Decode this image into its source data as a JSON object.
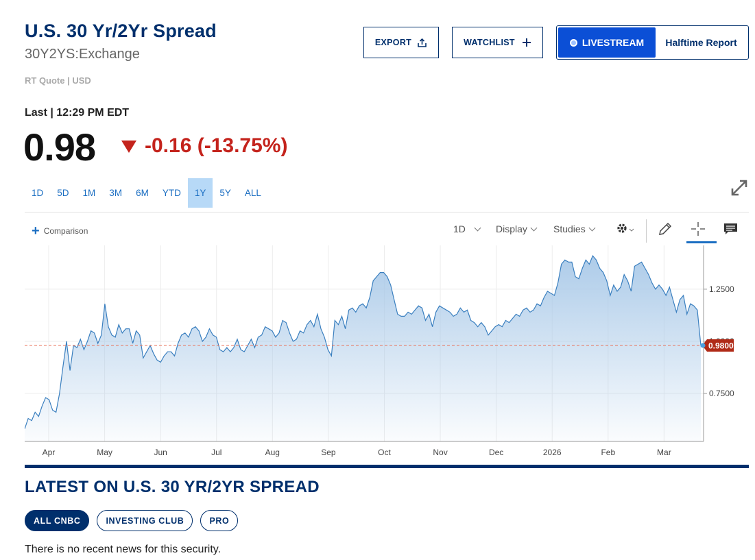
{
  "header": {
    "title": "U.S. 30 Yr/2Yr Spread",
    "symbol": "30Y2YS:Exchange",
    "quote_meta": "RT Quote | USD"
  },
  "actions": {
    "export_label": "EXPORT",
    "watchlist_label": "WATCHLIST",
    "livestream_label": "LIVESTREAM",
    "livestream_show": "Halftime Report"
  },
  "quote": {
    "last_label": "Last | 12:29 PM EDT",
    "price": "0.98",
    "change": "-0.16 (-13.75%)",
    "direction": "down",
    "change_color": "#c4231c"
  },
  "ranges": [
    {
      "label": "1D",
      "active": false
    },
    {
      "label": "5D",
      "active": false
    },
    {
      "label": "1M",
      "active": false
    },
    {
      "label": "3M",
      "active": false
    },
    {
      "label": "6M",
      "active": false
    },
    {
      "label": "YTD",
      "active": false
    },
    {
      "label": "1Y",
      "active": true
    },
    {
      "label": "5Y",
      "active": false
    },
    {
      "label": "ALL",
      "active": false
    }
  ],
  "toolbar": {
    "comparison_label": "Comparison",
    "interval_label": "1D",
    "display_label": "Display",
    "studies_label": "Studies",
    "icons": [
      "gear-icon",
      "pencil-icon",
      "crosshair-icon",
      "comment-icon"
    ]
  },
  "chart_data": {
    "type": "area",
    "x_ticks": [
      "Apr",
      "May",
      "Jun",
      "Jul",
      "Aug",
      "Sep",
      "Oct",
      "Nov",
      "Dec",
      "2026",
      "Feb",
      "Mar"
    ],
    "y_ticks": [
      "1.2500",
      "1.0000",
      "0.7500"
    ],
    "ylim": [
      0.52,
      1.46
    ],
    "current_label": "0.9800",
    "current_value": 0.98,
    "line_color": "#3a7fbf",
    "fill_color": "#a9c9e8",
    "marker_color": "#b02a17",
    "reference_line_color": "#e8735a",
    "series": [
      {
        "values": [
          0.58,
          0.63,
          0.62,
          0.66,
          0.64,
          0.69,
          0.73,
          0.72,
          0.67,
          0.66,
          0.75,
          0.88,
          1.0,
          0.86,
          0.98,
          0.97,
          1.01,
          0.96,
          1.0,
          1.05,
          1.04,
          0.99,
          1.03,
          1.18,
          1.07,
          1.03,
          1.02,
          1.08,
          1.04,
          1.06,
          1.06,
          0.99,
          1.05,
          1.03,
          0.92,
          0.95,
          0.98,
          0.94,
          0.91,
          0.9,
          0.93,
          0.95,
          0.95,
          0.93,
          0.99,
          1.03,
          1.04,
          1.02,
          1.06,
          1.07,
          1.05,
          1.0,
          1.02,
          1.06,
          1.03,
          1.02,
          0.96,
          0.95,
          0.97,
          0.95,
          0.97,
          1.01,
          0.96,
          0.95,
          0.98,
          1.01,
          0.97,
          1.02,
          1.03,
          1.07,
          1.06,
          1.05,
          1.02,
          1.04,
          1.1,
          1.09,
          1.04,
          1.0,
          1.01,
          1.05,
          1.04,
          1.08,
          1.1,
          1.07,
          1.13,
          1.06,
          1.02,
          0.96,
          0.93,
          1.1,
          1.08,
          1.12,
          1.06,
          1.15,
          1.16,
          1.14,
          1.17,
          1.18,
          1.16,
          1.21,
          1.29,
          1.31,
          1.33,
          1.33,
          1.31,
          1.27,
          1.2,
          1.13,
          1.12,
          1.12,
          1.14,
          1.13,
          1.15,
          1.17,
          1.16,
          1.1,
          1.13,
          1.07,
          1.14,
          1.17,
          1.16,
          1.15,
          1.14,
          1.12,
          1.13,
          1.16,
          1.14,
          1.15,
          1.1,
          1.09,
          1.07,
          1.09,
          1.07,
          1.03,
          1.05,
          1.07,
          1.08,
          1.07,
          1.1,
          1.09,
          1.11,
          1.13,
          1.12,
          1.15,
          1.16,
          1.14,
          1.15,
          1.18,
          1.17,
          1.21,
          1.24,
          1.23,
          1.22,
          1.28,
          1.37,
          1.39,
          1.38,
          1.38,
          1.31,
          1.3,
          1.35,
          1.39,
          1.37,
          1.41,
          1.39,
          1.35,
          1.33,
          1.29,
          1.22,
          1.27,
          1.24,
          1.26,
          1.32,
          1.29,
          1.24,
          1.36,
          1.37,
          1.38,
          1.35,
          1.32,
          1.28,
          1.25,
          1.27,
          1.25,
          1.22,
          1.26,
          1.2,
          1.14,
          1.2,
          1.22,
          1.13,
          1.18,
          1.17,
          1.15,
          0.98
        ]
      }
    ]
  },
  "news": {
    "title": "LATEST ON U.S. 30 YR/2YR SPREAD",
    "filters": [
      {
        "label": "ALL CNBC",
        "active": true
      },
      {
        "label": "INVESTING CLUB",
        "active": false
      },
      {
        "label": "PRO",
        "active": false
      }
    ],
    "empty_message": "There is no recent news for this security."
  }
}
